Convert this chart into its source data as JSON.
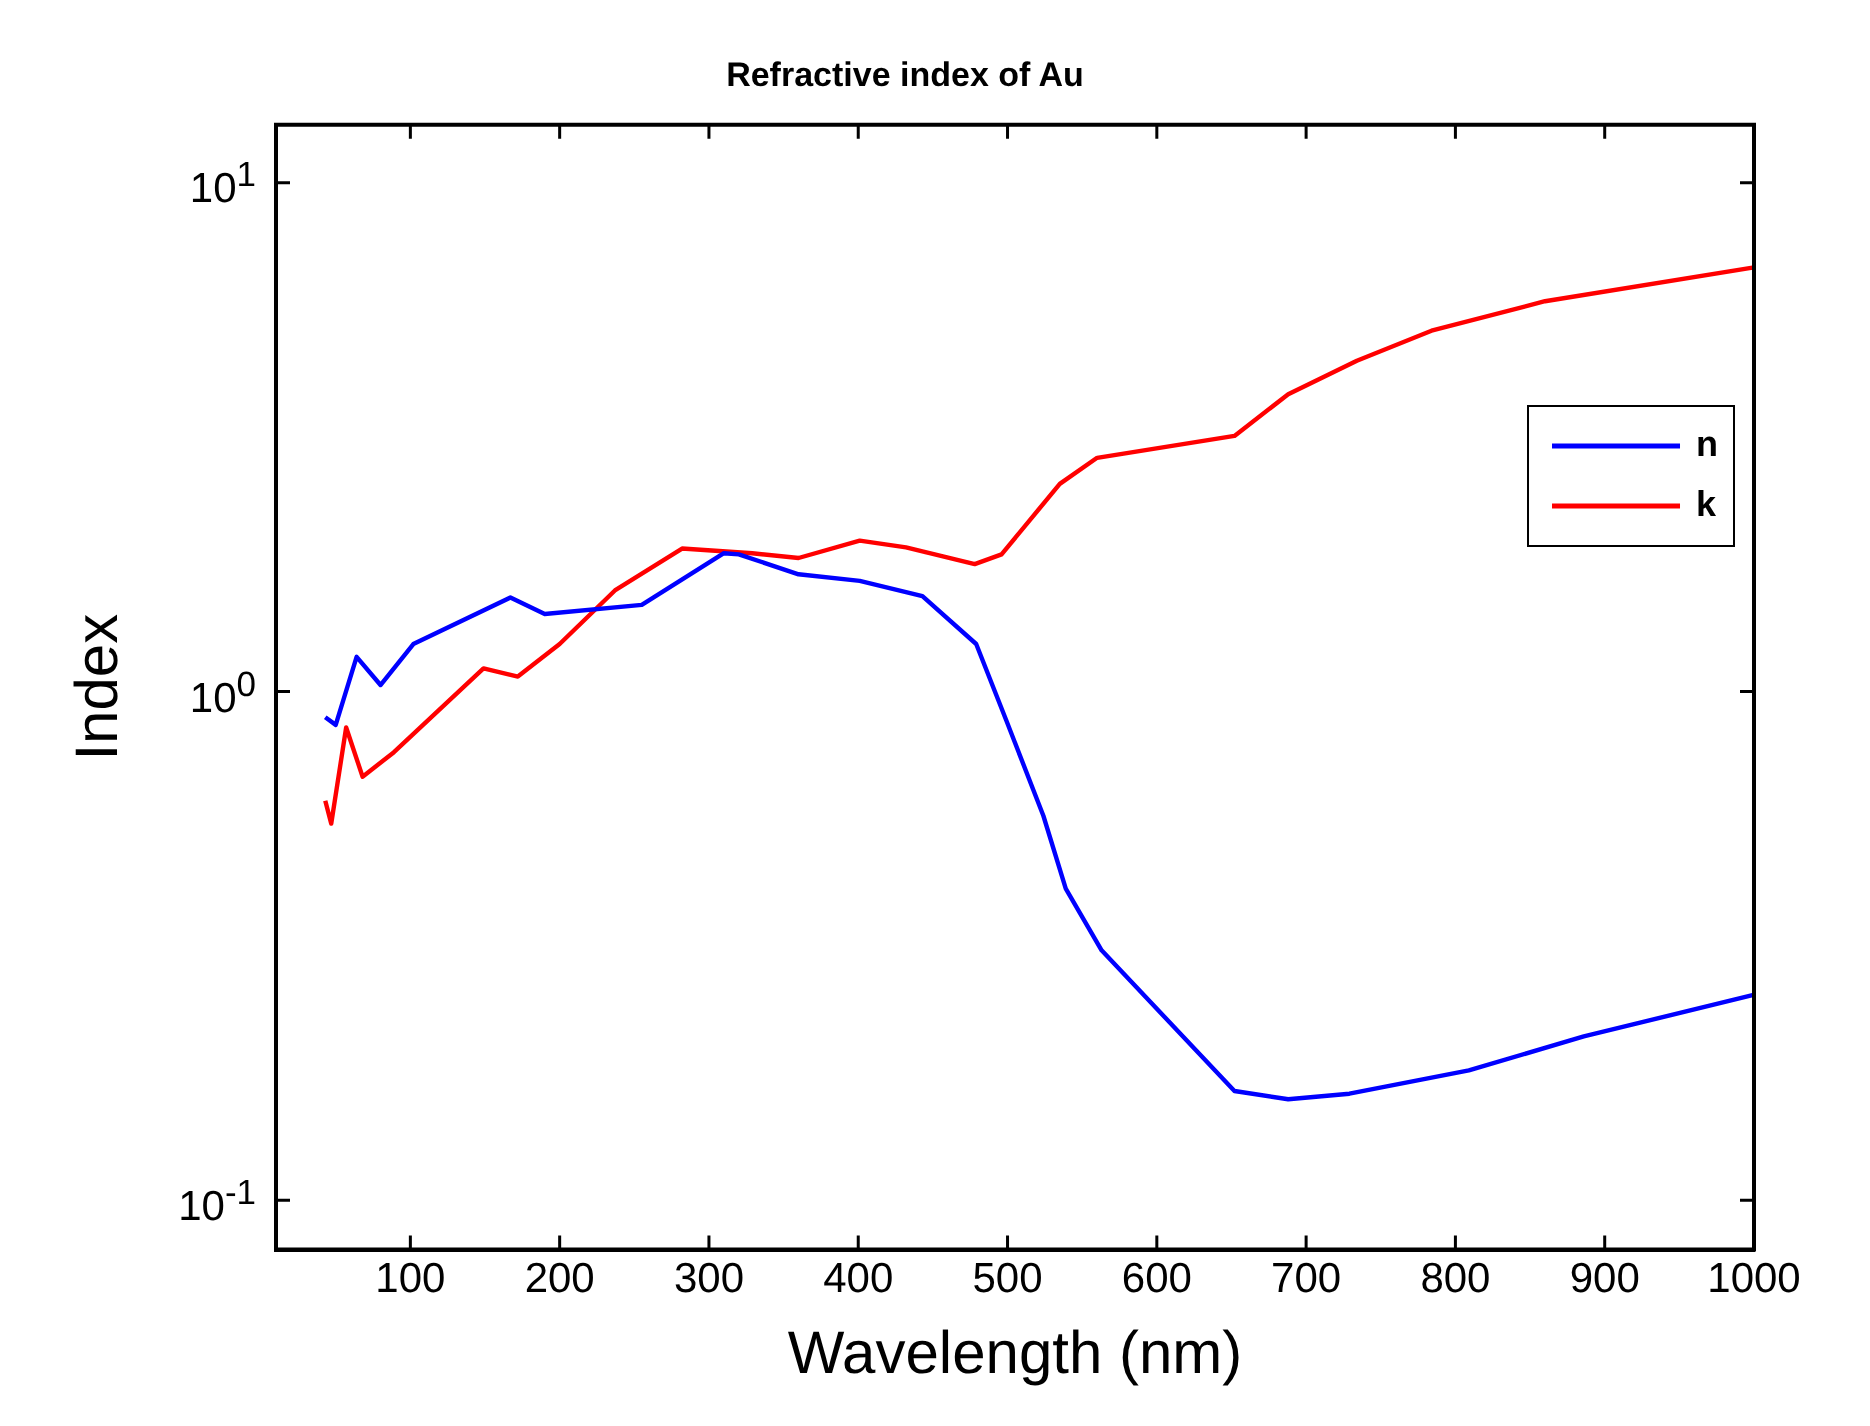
{
  "chart_data": {
    "type": "line",
    "title": "Refractive index of Au",
    "xlabel": "Wavelength (nm)",
    "ylabel": "Index",
    "log": "y",
    "xlim": [
      10,
      1000
    ],
    "ylim": [
      0.08,
      13
    ],
    "xticks": [
      100,
      200,
      300,
      400,
      500,
      600,
      700,
      800,
      900,
      1000
    ],
    "yticks": [
      {
        "value": 0.1,
        "label": "10$^{-1}$"
      },
      {
        "value": 1,
        "label": "10$^{0}$"
      },
      {
        "value": 10,
        "label": "10$^{1}$"
      }
    ],
    "grid": false,
    "legend": "right",
    "marker": "none",
    "line_style": "solid",
    "series": [
      {
        "name": "n",
        "color": "#0000ff",
        "x": [
          43,
          50,
          64,
          80,
          102,
          167,
          190,
          255,
          310,
          320,
          360,
          401,
          443,
          479,
          499,
          524,
          539,
          563,
          652,
          688,
          729,
          809,
          886,
          999
        ],
        "values": [
          0.89,
          0.86,
          1.17,
          1.03,
          1.24,
          1.53,
          1.42,
          1.48,
          1.87,
          1.86,
          1.7,
          1.65,
          1.54,
          1.24,
          0.88,
          0.57,
          0.41,
          0.31,
          0.164,
          0.158,
          0.162,
          0.18,
          0.21,
          0.253
        ]
      },
      {
        "name": "k",
        "color": "#ff0000",
        "x": [
          43,
          47,
          57,
          68,
          89,
          149,
          172,
          200,
          237,
          282,
          329,
          360,
          401,
          432,
          478,
          496,
          535,
          560,
          652,
          688,
          734,
          784,
          860,
          999
        ],
        "values": [
          0.61,
          0.55,
          0.85,
          0.68,
          0.76,
          1.11,
          1.07,
          1.24,
          1.58,
          1.91,
          1.87,
          1.83,
          1.98,
          1.92,
          1.78,
          1.86,
          2.56,
          2.88,
          3.18,
          3.84,
          4.47,
          5.12,
          5.85,
          6.81
        ]
      }
    ]
  }
}
